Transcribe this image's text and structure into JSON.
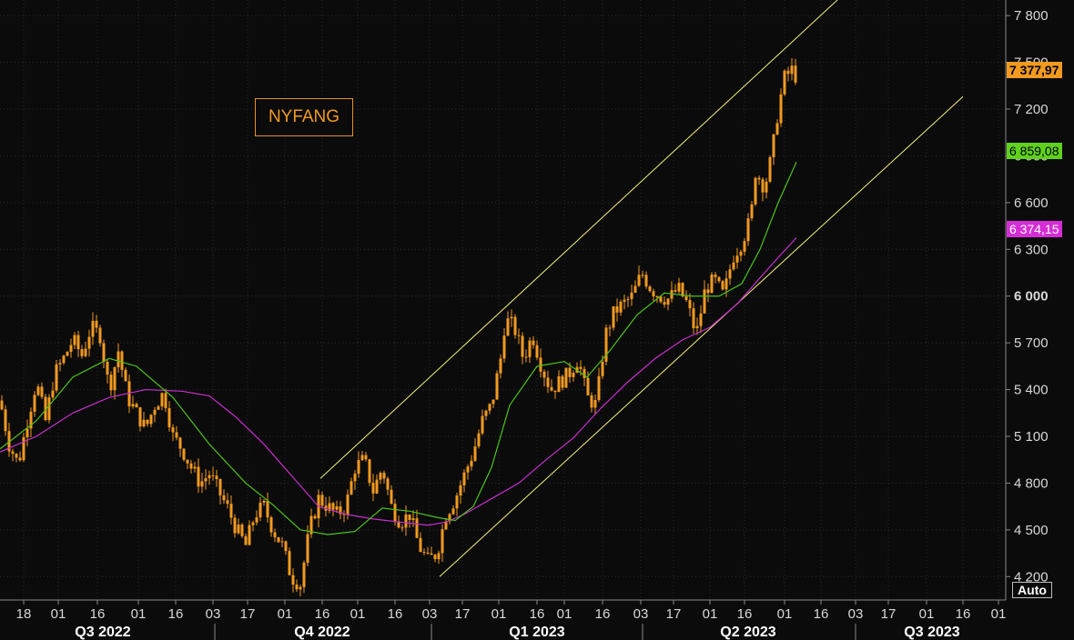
{
  "chart_data": {
    "type": "candlestick",
    "title": "NYFANG",
    "ylim": [
      4050,
      7900
    ],
    "y_ticks": [
      {
        "value": 4200,
        "label": "4 200",
        "bold": false
      },
      {
        "value": 4500,
        "label": "4 500",
        "bold": false
      },
      {
        "value": 4800,
        "label": "4 800",
        "bold": false
      },
      {
        "value": 5100,
        "label": "5 100",
        "bold": false
      },
      {
        "value": 5400,
        "label": "5 400",
        "bold": false
      },
      {
        "value": 5700,
        "label": "5 700",
        "bold": false
      },
      {
        "value": 6000,
        "label": "6 000",
        "bold": true
      },
      {
        "value": 6300,
        "label": "6 300",
        "bold": false
      },
      {
        "value": 6600,
        "label": "6 600",
        "bold": false
      },
      {
        "value": 6900,
        "label": "6 900",
        "bold": false
      },
      {
        "value": 7200,
        "label": "7 200",
        "bold": false
      },
      {
        "value": 7500,
        "label": "7 500",
        "bold": false
      },
      {
        "value": 7800,
        "label": "7 800",
        "bold": false
      }
    ],
    "x_day_ticks": [
      "18",
      "01",
      "16",
      "01",
      "16",
      "03",
      "17",
      "01",
      "16",
      "01",
      "16",
      "03",
      "17",
      "01",
      "16",
      "01",
      "16",
      "03",
      "17",
      "01",
      "16",
      "01",
      "16",
      "03",
      "17",
      "01",
      "16",
      "01"
    ],
    "x_quarter_labels": [
      "Q3 2022",
      "Q4 2022",
      "Q1 2023",
      "Q2 2023",
      "Q3 2023"
    ],
    "last_value_label": "7 377,97",
    "ma_fast_label": "6 859,08",
    "ma_slow_label": "6 374,15",
    "ma_fast_value": 6859.08,
    "ma_slow_value": 6374.15,
    "last_value": 7377.97,
    "price_path": [
      [
        0,
        5330
      ],
      [
        10,
        5050
      ],
      [
        20,
        4920
      ],
      [
        30,
        5200
      ],
      [
        40,
        5450
      ],
      [
        50,
        5200
      ],
      [
        60,
        5500
      ],
      [
        70,
        5600
      ],
      [
        80,
        5720
      ],
      [
        90,
        5620
      ],
      [
        100,
        5800
      ],
      [
        110,
        5750
      ],
      [
        120,
        5400
      ],
      [
        130,
        5650
      ],
      [
        140,
        5350
      ],
      [
        150,
        5250
      ],
      [
        160,
        5150
      ],
      [
        170,
        5300
      ],
      [
        180,
        5380
      ],
      [
        190,
        5100
      ],
      [
        200,
        5020
      ],
      [
        210,
        4900
      ],
      [
        220,
        4800
      ],
      [
        230,
        4860
      ],
      [
        240,
        4750
      ],
      [
        250,
        4640
      ],
      [
        260,
        4500
      ],
      [
        270,
        4400
      ],
      [
        280,
        4600
      ],
      [
        290,
        4650
      ],
      [
        300,
        4500
      ],
      [
        310,
        4400
      ],
      [
        320,
        4200
      ],
      [
        330,
        4150
      ],
      [
        340,
        4500
      ],
      [
        350,
        4700
      ],
      [
        360,
        4650
      ],
      [
        370,
        4600
      ],
      [
        380,
        4650
      ],
      [
        390,
        4900
      ],
      [
        400,
        4950
      ],
      [
        410,
        4750
      ],
      [
        420,
        4900
      ],
      [
        430,
        4650
      ],
      [
        440,
        4550
      ],
      [
        450,
        4600
      ],
      [
        460,
        4400
      ],
      [
        470,
        4300
      ],
      [
        480,
        4350
      ],
      [
        490,
        4600
      ],
      [
        500,
        4700
      ],
      [
        510,
        4850
      ],
      [
        520,
        5000
      ],
      [
        530,
        5200
      ],
      [
        540,
        5300
      ],
      [
        550,
        5600
      ],
      [
        555,
        5850
      ],
      [
        565,
        5800
      ],
      [
        575,
        5600
      ],
      [
        585,
        5750
      ],
      [
        595,
        5550
      ],
      [
        605,
        5400
      ],
      [
        615,
        5450
      ],
      [
        625,
        5500
      ],
      [
        635,
        5600
      ],
      [
        645,
        5350
      ],
      [
        655,
        5300
      ],
      [
        665,
        5750
      ],
      [
        675,
        5900
      ],
      [
        685,
        5950
      ],
      [
        695,
        6000
      ],
      [
        705,
        6150
      ],
      [
        715,
        6050
      ],
      [
        725,
        6000
      ],
      [
        735,
        5980
      ],
      [
        745,
        6050
      ],
      [
        755,
        5950
      ],
      [
        765,
        5750
      ],
      [
        775,
        6050
      ],
      [
        785,
        6100
      ],
      [
        795,
        6000
      ],
      [
        805,
        6250
      ],
      [
        815,
        6350
      ],
      [
        825,
        6500
      ],
      [
        830,
        6800
      ],
      [
        840,
        6700
      ],
      [
        848,
        6900
      ],
      [
        855,
        7200
      ],
      [
        862,
        7400
      ],
      [
        870,
        7450
      ],
      [
        878,
        7380
      ]
    ],
    "ma_fast_path": [
      [
        0,
        5020
      ],
      [
        40,
        5200
      ],
      [
        80,
        5480
      ],
      [
        120,
        5600
      ],
      [
        150,
        5550
      ],
      [
        190,
        5350
      ],
      [
        230,
        5050
      ],
      [
        270,
        4800
      ],
      [
        300,
        4660
      ],
      [
        330,
        4500
      ],
      [
        360,
        4470
      ],
      [
        390,
        4490
      ],
      [
        420,
        4640
      ],
      [
        450,
        4620
      ],
      [
        480,
        4580
      ],
      [
        500,
        4560
      ],
      [
        520,
        4650
      ],
      [
        540,
        4900
      ],
      [
        560,
        5300
      ],
      [
        590,
        5550
      ],
      [
        620,
        5580
      ],
      [
        645,
        5480
      ],
      [
        670,
        5650
      ],
      [
        700,
        5880
      ],
      [
        730,
        6020
      ],
      [
        760,
        6000
      ],
      [
        790,
        6000
      ],
      [
        815,
        6080
      ],
      [
        835,
        6300
      ],
      [
        855,
        6600
      ],
      [
        875,
        6860
      ]
    ],
    "ma_slow_path": [
      [
        0,
        5000
      ],
      [
        40,
        5100
      ],
      [
        80,
        5250
      ],
      [
        120,
        5350
      ],
      [
        160,
        5400
      ],
      [
        200,
        5390
      ],
      [
        230,
        5360
      ],
      [
        260,
        5220
      ],
      [
        290,
        5050
      ],
      [
        320,
        4850
      ],
      [
        350,
        4650
      ],
      [
        380,
        4600
      ],
      [
        410,
        4570
      ],
      [
        440,
        4550
      ],
      [
        470,
        4530
      ],
      [
        490,
        4550
      ],
      [
        510,
        4600
      ],
      [
        540,
        4700
      ],
      [
        570,
        4800
      ],
      [
        600,
        4950
      ],
      [
        630,
        5090
      ],
      [
        660,
        5280
      ],
      [
        690,
        5450
      ],
      [
        720,
        5600
      ],
      [
        750,
        5720
      ],
      [
        780,
        5800
      ],
      [
        810,
        5950
      ],
      [
        840,
        6150
      ],
      [
        860,
        6280
      ],
      [
        875,
        6374
      ]
    ],
    "channel_lines": [
      {
        "x1": 352,
        "v1": 4830,
        "x2": 920,
        "v2": 7900
      },
      {
        "x1": 483,
        "v1": 4200,
        "x2": 1058,
        "v2": 7280
      }
    ]
  },
  "colors": {
    "background": "#0b0b0b",
    "candle": "#f29a1f",
    "ma_fast": "#4cc41a",
    "ma_slow": "#c82ed0",
    "channel": "#f2f07a",
    "grid": "#2a2a2a",
    "axis_text": "#d8d8d8"
  },
  "controls": {
    "auto_label": "Auto"
  }
}
